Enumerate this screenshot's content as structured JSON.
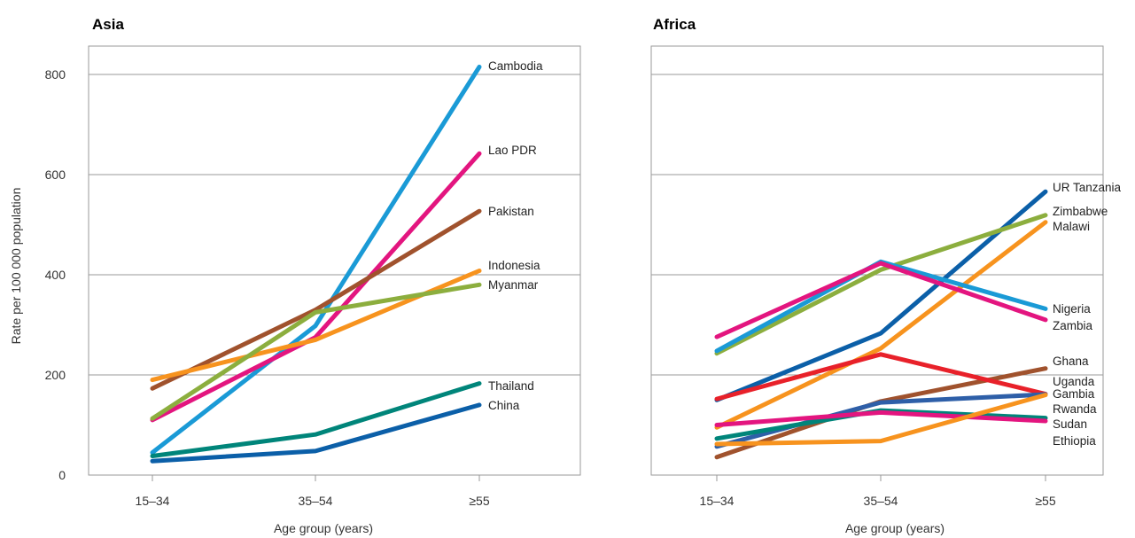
{
  "chart_data": [
    {
      "type": "line",
      "title": "Asia",
      "xlabel": "Age group (years)",
      "ylabel": "Rate per 100 000 population",
      "ylim": [
        0,
        800
      ],
      "yticks": [
        "0",
        "200",
        "400",
        "600",
        "800"
      ],
      "categories": [
        "15–34",
        "35–54",
        "≥55"
      ],
      "grid": true,
      "series": [
        {
          "name": "Cambodia",
          "color": "#1a9ad6",
          "values": [
            45,
            298,
            815
          ]
        },
        {
          "name": "Lao PDR",
          "color": "#e3157f",
          "values": [
            110,
            275,
            642
          ]
        },
        {
          "name": "Pakistan",
          "color": "#a0522d",
          "values": [
            173,
            330,
            527
          ]
        },
        {
          "name": "Indonesia",
          "color": "#f7931e",
          "values": [
            190,
            270,
            408
          ]
        },
        {
          "name": "Myanmar",
          "color": "#8cae3e",
          "values": [
            113,
            325,
            380
          ]
        },
        {
          "name": "Thailand",
          "color": "#00857a",
          "values": [
            38,
            81,
            183
          ]
        },
        {
          "name": "China",
          "color": "#0b5fa8",
          "values": [
            28,
            48,
            140
          ]
        }
      ]
    },
    {
      "type": "line",
      "title": "Africa",
      "xlabel": "Age group (years)",
      "ylim": [
        0,
        800
      ],
      "categories": [
        "15–34",
        "35–54",
        "≥55"
      ],
      "grid": true,
      "series": [
        {
          "name": "UR Tanzania",
          "color": "#0b5fa8",
          "values": [
            150,
            283,
            566
          ]
        },
        {
          "name": "Zimbabwe",
          "color": "#8cae3e",
          "values": [
            243,
            410,
            519
          ]
        },
        {
          "name": "Malawi",
          "color": "#f7931e",
          "values": [
            95,
            253,
            505
          ]
        },
        {
          "name": "Nigeria",
          "color": "#1a9ad6",
          "values": [
            248,
            426,
            332
          ]
        },
        {
          "name": "Zambia",
          "color": "#e3157f",
          "values": [
            276,
            423,
            310
          ]
        },
        {
          "name": "Ghana",
          "color": "#a0522d",
          "values": [
            36,
            147,
            213
          ]
        },
        {
          "name": "Uganda",
          "color": "#e8212a",
          "values": [
            152,
            241,
            162
          ]
        },
        {
          "name": "Gambia",
          "color": "#2e5fa8",
          "values": [
            57,
            145,
            161
          ]
        },
        {
          "name": "Rwanda",
          "color": "#00857a",
          "values": [
            73,
            129,
            114
          ]
        },
        {
          "name": "Sudan",
          "color": "#e3157f",
          "values": [
            100,
            125,
            108
          ]
        },
        {
          "name": "Ethiopia",
          "color": "#f7931e",
          "values": [
            62,
            68,
            160
          ]
        }
      ]
    }
  ]
}
